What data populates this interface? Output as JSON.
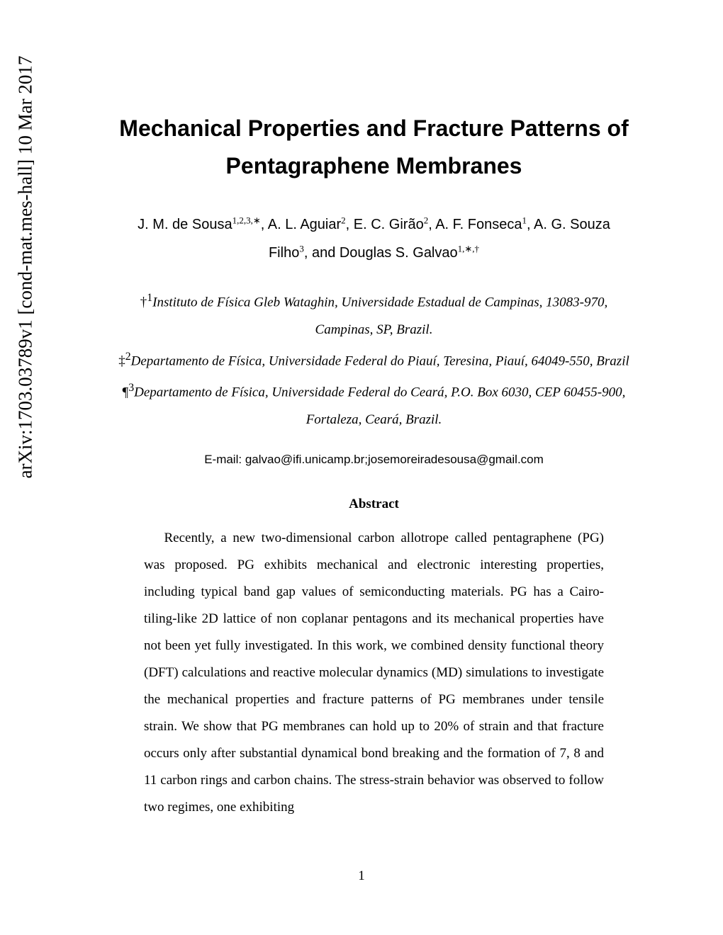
{
  "arxiv": {
    "id": "arXiv:1703.03789v1",
    "category": "[cond-mat.mes-hall]",
    "date": "10 Mar 2017"
  },
  "title": "Mechanical Properties and Fracture Patterns of Pentagraphene Membranes",
  "authors_line1_pre": "J. M. de Sousa",
  "authors_line1_sup1": "1,2,3,∗",
  "authors_line1_mid1": ", A. L. Aguiar",
  "authors_line1_sup2": "2",
  "authors_line1_mid2": ", E. C. Girão",
  "authors_line1_sup3": "2",
  "authors_line1_mid3": ", A. F. Fonseca",
  "authors_line1_sup4": "1",
  "authors_line1_mid4": ", A. G. Souza",
  "authors_line2_pre": "Filho",
  "authors_line2_sup1": "3",
  "authors_line2_mid": ", and Douglas S. Galvao",
  "authors_line2_sup2": "1,∗,†",
  "affil1_marker": "†",
  "affil1_sup": "1",
  "affil1_text": "Instituto de Física Gleb Wataghin, Universidade Estadual de Campinas, 13083-970, Campinas, SP, Brazil.",
  "affil2_marker": "‡",
  "affil2_sup": "2",
  "affil2_text": "Departamento de Física, Universidade Federal do Piauí, Teresina, Piauí, 64049-550, Brazil",
  "affil3_marker": "¶",
  "affil3_sup": "3",
  "affil3_text": "Departamento de Física, Universidade Federal do Ceará, P.O. Box 6030, CEP 60455-900, Fortaleza, Ceará, Brazil.",
  "email_label": "E-mail: ",
  "email_value": "galvao@ifi.unicamp.br;josemoreiradesousa@gmail.com",
  "abstract_heading": "Abstract",
  "abstract_body": "Recently, a new two-dimensional carbon allotrope called pentagraphene (PG) was proposed. PG exhibits mechanical and electronic interesting properties, including typical band gap values of semiconducting materials. PG has a Cairo-tiling-like 2D lattice of non coplanar pentagons and its mechanical properties have not been yet fully investigated. In this work, we combined density functional theory (DFT) calculations and reactive molecular dynamics (MD) simulations to investigate the mechanical properties and fracture patterns of PG membranes under tensile strain. We show that PG membranes can hold up to 20% of strain and that fracture occurs only after substantial dynamical bond breaking and the formation of 7, 8 and 11 carbon rings and carbon chains. The stress-strain behavior was observed to follow two regimes, one exhibiting",
  "page_number": "1"
}
